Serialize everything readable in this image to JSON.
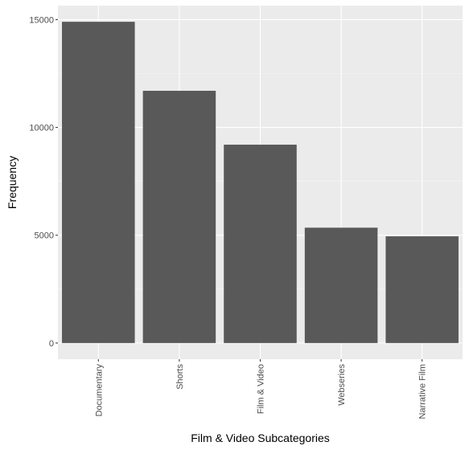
{
  "chart_data": {
    "type": "bar",
    "title": "",
    "xlabel": "Film & Video Subcategories",
    "ylabel": "Frequency",
    "categories": [
      "Documentary",
      "Shorts",
      "Film & Video",
      "Webseries",
      "Narrative Film"
    ],
    "values": [
      14900,
      11700,
      9200,
      5350,
      4950
    ],
    "ylim": [
      -750,
      15650
    ],
    "yticks": [
      0,
      5000,
      10000,
      15000
    ],
    "ytick_labels": [
      "0",
      "5000",
      "10000",
      "15000"
    ],
    "grid": true,
    "legend": "none",
    "colors": {
      "panel_background": "#ebebeb",
      "grid_major": "#ffffff",
      "grid_minor": "#f5f5f5",
      "bar_fill": "#595959",
      "tick_text": "#4d4d4d",
      "title_text": "#000000"
    }
  }
}
